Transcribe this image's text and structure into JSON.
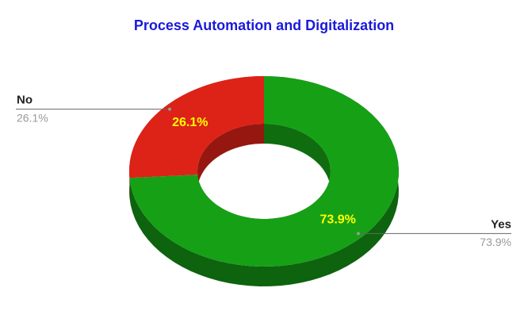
{
  "chart_data": {
    "type": "pie",
    "title": "Process Automation and Digitalization",
    "categories": [
      "Yes",
      "No"
    ],
    "values": [
      73.9,
      26.1
    ],
    "value_labels": [
      "73.9%",
      "26.1%"
    ],
    "colors": [
      "#16a016",
      "#dd2218"
    ],
    "donut": true,
    "three_d": true
  }
}
